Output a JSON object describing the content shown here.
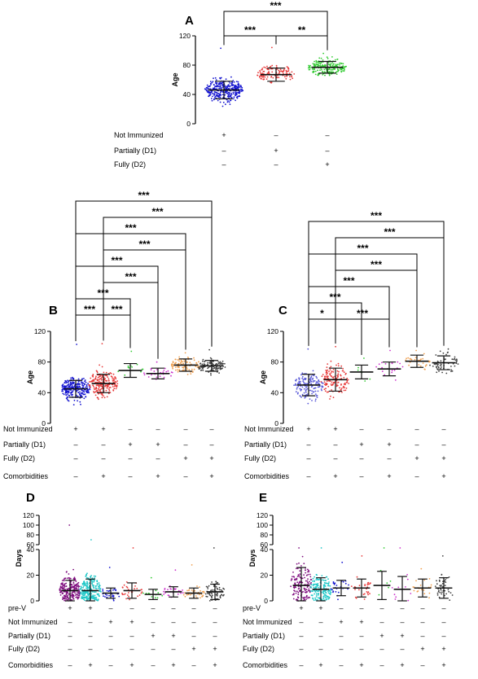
{
  "chart_data": [
    {
      "type": "scatter",
      "panel_label": "A",
      "ylabel": "Age",
      "ylim": [
        0,
        120
      ],
      "yticks": [
        "0",
        "40",
        "80",
        "120"
      ],
      "row_labels": [
        "Not Immunized",
        "Partially (D1)",
        "Fully (D2)"
      ],
      "signs": [
        [
          "+",
          "–",
          "–"
        ],
        [
          "–",
          "+",
          "–"
        ],
        [
          "–",
          "–",
          "+"
        ]
      ],
      "groups": [
        {
          "color": "#1515d0",
          "mean": 46,
          "sd": 12,
          "min": 5,
          "max": 103,
          "n": 330
        },
        {
          "color": "#e83a3a",
          "mean": 67,
          "sd": 9,
          "min": 50,
          "max": 104,
          "n": 120
        },
        {
          "color": "#35cc35",
          "mean": 77,
          "sd": 8,
          "min": 55,
          "max": 96,
          "n": 220
        }
      ],
      "comparisons": [
        {
          "from": 0,
          "to": 2,
          "level": 2,
          "label": "***"
        },
        {
          "from": 0,
          "to": 1,
          "level": 1,
          "label": "***"
        },
        {
          "from": 1,
          "to": 2,
          "level": 1,
          "label": "**"
        }
      ]
    },
    {
      "type": "scatter",
      "panel_label": "B",
      "ylabel": "Age",
      "ylim": [
        0,
        120
      ],
      "yticks": [
        "0",
        "40",
        "80",
        "120"
      ],
      "row_labels": [
        "Not Immunized",
        "Partially (D1)",
        "Fully (D2)",
        "Comorbidities"
      ],
      "signs": [
        [
          "+",
          "+",
          "–",
          "–",
          "–",
          "–"
        ],
        [
          "–",
          "–",
          "+",
          "+",
          "–",
          "–"
        ],
        [
          "–",
          "–",
          "–",
          "–",
          "+",
          "+"
        ],
        [
          "–",
          "+",
          "–",
          "+",
          "–",
          "+"
        ]
      ],
      "groups": [
        {
          "color": "#1515d0",
          "mean": 45,
          "sd": 11,
          "min": 5,
          "max": 103,
          "n": 260
        },
        {
          "color": "#e83a3a",
          "mean": 52,
          "sd": 12,
          "min": 10,
          "max": 104,
          "n": 210
        },
        {
          "color": "#35cc35",
          "mean": 69,
          "sd": 9,
          "min": 55,
          "max": 94,
          "n": 12
        },
        {
          "color": "#cc33cc",
          "mean": 65,
          "sd": 7,
          "min": 55,
          "max": 80,
          "n": 25
        },
        {
          "color": "#f0a050",
          "mean": 76,
          "sd": 8,
          "min": 60,
          "max": 92,
          "n": 90
        },
        {
          "color": "#404040",
          "mean": 75,
          "sd": 7,
          "min": 60,
          "max": 96,
          "n": 110
        }
      ],
      "comparisons": [
        {
          "from": 0,
          "to": 1,
          "level": 1,
          "label": "***"
        },
        {
          "from": 1,
          "to": 2,
          "level": 1,
          "label": "***"
        },
        {
          "from": 0,
          "to": 2,
          "level": 2,
          "label": "***"
        },
        {
          "from": 1,
          "to": 3,
          "level": 3,
          "label": "***"
        },
        {
          "from": 0,
          "to": 3,
          "level": 4,
          "label": "***"
        },
        {
          "from": 1,
          "to": 4,
          "level": 5,
          "label": "***"
        },
        {
          "from": 0,
          "to": 4,
          "level": 6,
          "label": "***"
        },
        {
          "from": 1,
          "to": 5,
          "level": 7,
          "label": "***"
        },
        {
          "from": 0,
          "to": 5,
          "level": 8,
          "label": "***"
        }
      ]
    },
    {
      "type": "scatter",
      "panel_label": "C",
      "ylabel": "Age",
      "ylim": [
        0,
        120
      ],
      "yticks": [
        "0",
        "40",
        "80",
        "120"
      ],
      "row_labels": [
        "Not Immunized",
        "Partially (D1)",
        "Fully (D2)",
        "Comorbidities"
      ],
      "signs": [
        [
          "+",
          "+",
          "–",
          "–",
          "–",
          "–"
        ],
        [
          "–",
          "–",
          "+",
          "+",
          "–",
          "–"
        ],
        [
          "–",
          "–",
          "–",
          "–",
          "+",
          "+"
        ],
        [
          "–",
          "+",
          "–",
          "+",
          "–",
          "+"
        ]
      ],
      "groups": [
        {
          "color": "#5858d8",
          "mean": 50,
          "sd": 14,
          "min": 20,
          "max": 97,
          "n": 150
        },
        {
          "color": "#e83a3a",
          "mean": 57,
          "sd": 15,
          "min": 20,
          "max": 100,
          "n": 140
        },
        {
          "color": "#35cc35",
          "mean": 67,
          "sd": 9,
          "min": 55,
          "max": 85,
          "n": 8
        },
        {
          "color": "#cc33cc",
          "mean": 71,
          "sd": 9,
          "min": 55,
          "max": 95,
          "n": 20
        },
        {
          "color": "#f0a050",
          "mean": 81,
          "sd": 8,
          "min": 62,
          "max": 95,
          "n": 30
        },
        {
          "color": "#404040",
          "mean": 79,
          "sd": 9,
          "min": 60,
          "max": 97,
          "n": 60
        }
      ],
      "comparisons": [
        {
          "from": 0,
          "to": 1,
          "level": 1,
          "label": "*"
        },
        {
          "from": 1,
          "to": 3,
          "level": 1,
          "label": "***"
        },
        {
          "from": 0,
          "to": 2,
          "level": 2,
          "label": "***"
        },
        {
          "from": 0,
          "to": 3,
          "level": 3,
          "label": "***"
        },
        {
          "from": 1,
          "to": 4,
          "level": 4,
          "label": "***"
        },
        {
          "from": 0,
          "to": 4,
          "level": 5,
          "label": "***"
        },
        {
          "from": 1,
          "to": 5,
          "level": 6,
          "label": "***"
        },
        {
          "from": 0,
          "to": 5,
          "level": 7,
          "label": "***"
        }
      ]
    },
    {
      "type": "scatter",
      "panel_label": "D",
      "ylabel": "Days",
      "ylim": [
        0,
        120
      ],
      "axis_break": [
        40,
        60
      ],
      "yticks": [
        "0",
        "20",
        "40",
        "60",
        "80",
        "100",
        "120"
      ],
      "row_labels": [
        "pre-V",
        "Not Immunized",
        "Partially (D1)",
        "Fully (D2)",
        "Comorbidities"
      ],
      "signs": [
        [
          "+",
          "+",
          "–",
          "–",
          "–",
          "–",
          "–",
          "–"
        ],
        [
          "–",
          "–",
          "+",
          "+",
          "–",
          "–",
          "–",
          "–"
        ],
        [
          "–",
          "–",
          "–",
          "–",
          "+",
          "+",
          "–",
          "–"
        ],
        [
          "–",
          "–",
          "–",
          "–",
          "–",
          "–",
          "+",
          "+"
        ],
        [
          "–",
          "+",
          "–",
          "+",
          "–",
          "+",
          "–",
          "+"
        ]
      ],
      "groups": [
        {
          "color": "#801080",
          "mean": 8,
          "sd": 8,
          "min": 0,
          "max": 100,
          "n": 220
        },
        {
          "color": "#20c8c8",
          "mean": 8,
          "sd": 9,
          "min": 0,
          "max": 70,
          "n": 240
        },
        {
          "color": "#1515d0",
          "mean": 6,
          "sd": 4,
          "min": 0,
          "max": 26,
          "n": 30
        },
        {
          "color": "#e83a3a",
          "mean": 8,
          "sd": 6,
          "min": 0,
          "max": 50,
          "n": 30
        },
        {
          "color": "#35cc35",
          "mean": 5,
          "sd": 4,
          "min": 0,
          "max": 18,
          "n": 12
        },
        {
          "color": "#cc33cc",
          "mean": 7,
          "sd": 4,
          "min": 0,
          "max": 24,
          "n": 25
        },
        {
          "color": "#f0a050",
          "mean": 6,
          "sd": 4,
          "min": 0,
          "max": 28,
          "n": 40
        },
        {
          "color": "#404040",
          "mean": 7,
          "sd": 6,
          "min": 0,
          "max": 50,
          "n": 70
        }
      ],
      "comparisons": []
    },
    {
      "type": "scatter",
      "panel_label": "E",
      "ylabel": "Days",
      "ylim": [
        0,
        120
      ],
      "axis_break": [
        40,
        60
      ],
      "yticks": [
        "0",
        "20",
        "40",
        "60",
        "80",
        "100",
        "120"
      ],
      "row_labels": [
        "pre-V",
        "Not Immunized",
        "Partially (D1)",
        "Fully (D2)",
        "Comorbidities"
      ],
      "signs": [
        [
          "+",
          "+",
          "–",
          "–",
          "–",
          "–",
          "–",
          "–"
        ],
        [
          "–",
          "–",
          "+",
          "+",
          "–",
          "–",
          "–",
          "–"
        ],
        [
          "–",
          "–",
          "–",
          "–",
          "+",
          "+",
          "–",
          "–"
        ],
        [
          "–",
          "–",
          "–",
          "–",
          "–",
          "–",
          "+",
          "+"
        ],
        [
          "–",
          "+",
          "–",
          "+",
          "–",
          "+",
          "–",
          "+"
        ]
      ],
      "groups": [
        {
          "color": "#801080",
          "mean": 12,
          "sd": 14,
          "min": 0,
          "max": 50,
          "n": 150
        },
        {
          "color": "#20c8c8",
          "mean": 9,
          "sd": 9,
          "min": 0,
          "max": 45,
          "n": 160
        },
        {
          "color": "#1515d0",
          "mean": 10,
          "sd": 6,
          "min": 0,
          "max": 30,
          "n": 25
        },
        {
          "color": "#e83a3a",
          "mean": 10,
          "sd": 7,
          "min": 0,
          "max": 35,
          "n": 30
        },
        {
          "color": "#35cc35",
          "mean": 12,
          "sd": 11,
          "min": 0,
          "max": 50,
          "n": 6
        },
        {
          "color": "#cc33cc",
          "mean": 9,
          "sd": 10,
          "min": 0,
          "max": 50,
          "n": 12
        },
        {
          "color": "#f0a050",
          "mean": 10,
          "sd": 7,
          "min": 0,
          "max": 25,
          "n": 20
        },
        {
          "color": "#404040",
          "mean": 10,
          "sd": 8,
          "min": 0,
          "max": 35,
          "n": 45
        }
      ],
      "comparisons": []
    }
  ]
}
